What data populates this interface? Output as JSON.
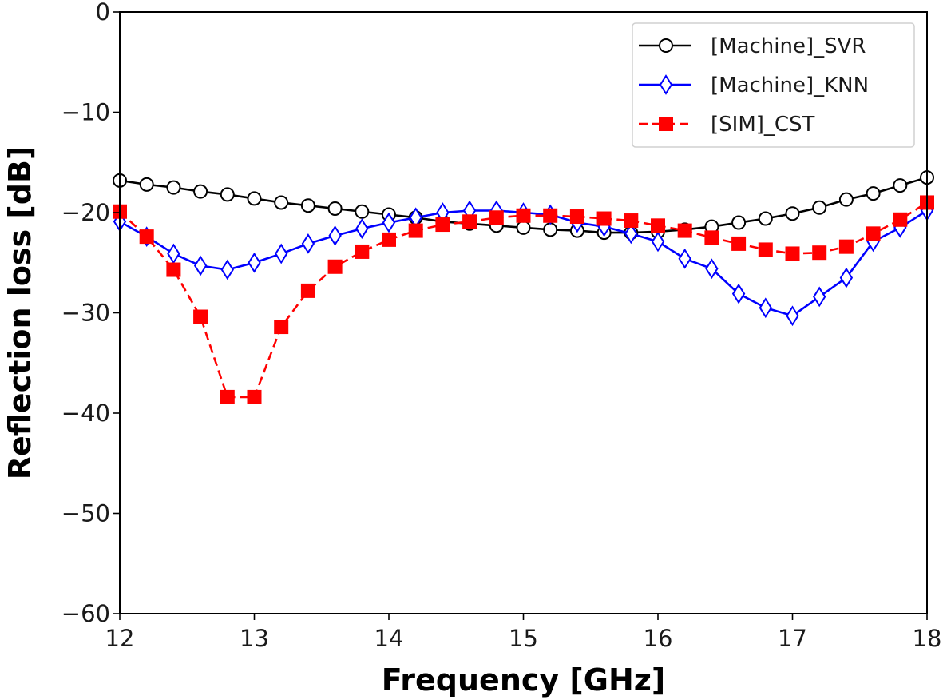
{
  "chart_data": {
    "type": "line",
    "title": "",
    "xlabel": "Frequency [GHz]",
    "ylabel": "Reflection loss [dB]",
    "xlim": [
      12,
      18
    ],
    "ylim": [
      -60,
      0
    ],
    "xticks": [
      12,
      13,
      14,
      15,
      16,
      17,
      18
    ],
    "yticks": [
      0,
      -10,
      -20,
      -30,
      -40,
      -50,
      -60
    ],
    "xtick_labels": [
      "12",
      "13",
      "14",
      "15",
      "16",
      "17",
      "18"
    ],
    "ytick_labels": [
      "0",
      "−10",
      "−20",
      "−30",
      "−40",
      "−50",
      "−60"
    ],
    "grid": false,
    "legend_position": "top-right",
    "x": [
      12.0,
      12.2,
      12.4,
      12.6,
      12.8,
      13.0,
      13.2,
      13.4,
      13.6,
      13.8,
      14.0,
      14.2,
      14.4,
      14.6,
      14.8,
      15.0,
      15.2,
      15.4,
      15.6,
      15.8,
      16.0,
      16.2,
      16.4,
      16.6,
      16.8,
      17.0,
      17.2,
      17.4,
      17.6,
      17.8,
      18.0
    ],
    "series": [
      {
        "name": "[Machine]_SVR",
        "color": "#000000",
        "marker": "circle",
        "marker_fill": "#ffffff",
        "linestyle": "solid",
        "values": [
          -16.8,
          -17.2,
          -17.5,
          -17.9,
          -18.2,
          -18.6,
          -19.0,
          -19.3,
          -19.6,
          -19.9,
          -20.2,
          -20.5,
          -20.9,
          -21.1,
          -21.3,
          -21.5,
          -21.7,
          -21.8,
          -22.0,
          -22.0,
          -21.9,
          -21.7,
          -21.4,
          -21.0,
          -20.6,
          -20.1,
          -19.5,
          -18.7,
          -18.1,
          -17.3,
          -16.5
        ]
      },
      {
        "name": "[Machine]_KNN",
        "color": "#0000ff",
        "marker": "diamond",
        "marker_fill": "#ffffff",
        "linestyle": "solid",
        "values": [
          -20.9,
          -22.4,
          -24.1,
          -25.3,
          -25.7,
          -25.0,
          -24.1,
          -23.1,
          -22.3,
          -21.6,
          -21.0,
          -20.5,
          -20.0,
          -19.8,
          -19.8,
          -20.0,
          -20.2,
          -21.0,
          -21.4,
          -22.1,
          -22.9,
          -24.6,
          -25.6,
          -28.1,
          -29.5,
          -30.3,
          -28.4,
          -26.5,
          -22.9,
          -21.5,
          -19.8
        ]
      },
      {
        "name": "[SIM]_CST",
        "color": "#ff0000",
        "marker": "square",
        "marker_fill": "#ff0000",
        "linestyle": "dashed",
        "values": [
          -19.9,
          -22.4,
          -25.7,
          -30.4,
          -38.4,
          -38.4,
          -31.4,
          -27.8,
          -25.4,
          -23.9,
          -22.7,
          -21.8,
          -21.2,
          -20.9,
          -20.5,
          -20.3,
          -20.3,
          -20.4,
          -20.6,
          -20.8,
          -21.3,
          -21.8,
          -22.5,
          -23.1,
          -23.7,
          -24.1,
          -24.0,
          -23.4,
          -22.1,
          -20.7,
          -19.0
        ]
      }
    ]
  }
}
